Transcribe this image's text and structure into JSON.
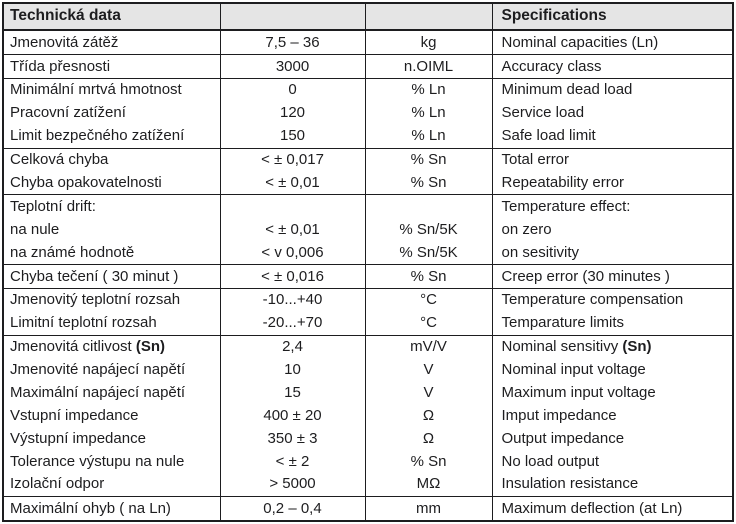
{
  "table": {
    "colors": {
      "header_bg": "#e5e5e5",
      "border": "#1d1d1f",
      "text": "#1d1d1f"
    },
    "header": {
      "czech_title": "Technická data",
      "value_title": "",
      "unit_title": "",
      "english_title": "Specifications"
    },
    "rows": [
      {
        "czech": "Jmenovitá zátěž",
        "value": "7,5 – 36",
        "unit": "kg",
        "english": "Nominal capacities (Ln)",
        "group_end": true
      },
      {
        "czech": "Třída přesnosti",
        "value": "3000",
        "unit": "n.OIML",
        "english": "Accuracy class",
        "group_end": true
      },
      {
        "czech": "Minimální mrtvá hmotnost",
        "value": "0",
        "unit": "% Ln",
        "english": "Minimum dead load"
      },
      {
        "czech": "Pracovní zatížení",
        "value": "120",
        "unit": "% Ln",
        "english": "Service load"
      },
      {
        "czech": "Limit bezpečného zatížení",
        "value": "150",
        "unit": "% Ln",
        "english": "Safe load limit",
        "group_end": true
      },
      {
        "czech": "Celková chyba",
        "value": "< ± 0,017",
        "unit": "% Sn",
        "english": "Total error"
      },
      {
        "czech": "Chyba opakovatelnosti",
        "value": "< ± 0,01",
        "unit": "% Sn",
        "english": "Repeatability error",
        "group_end": true
      },
      {
        "czech": "Teplotní drift:",
        "value": "",
        "unit": "",
        "english": "Temperature effect:"
      },
      {
        "czech": "na nule",
        "value": "< ± 0,01",
        "unit": "% Sn/5K",
        "english": "on zero"
      },
      {
        "czech": "na známé hodnotě",
        "value": "< v 0,006",
        "unit": "% Sn/5K",
        "english": "on sesitivity",
        "group_end": true
      },
      {
        "czech": "Chyba tečení ( 30 minut )",
        "value": "< ± 0,016",
        "unit": "% Sn",
        "english": "Creep error (30 minutes )",
        "group_end": true
      },
      {
        "czech": "Jmenovitý teplotní rozsah",
        "value": "-10...+40",
        "unit": "°C",
        "english": "Temperature compensation"
      },
      {
        "czech": "Limitní teplotní rozsah",
        "value": "-20...+70",
        "unit": "°C",
        "english": "Temparature limits",
        "group_end": true
      },
      {
        "czech": "Jmenovitá citlivost ",
        "czech_bold": "(Sn)",
        "value": "2,4",
        "unit": "mV/V",
        "english": "Nominal sensitivy ",
        "english_bold": "(Sn)"
      },
      {
        "czech": "Jmenovité napájecí napětí",
        "value": "10",
        "unit": "V",
        "english": "Nominal input voltage"
      },
      {
        "czech": "Maximální napájecí napětí",
        "value": "15",
        "unit": "V",
        "english": "Maximum input voltage"
      },
      {
        "czech": "Vstupní impedance",
        "value": "400 ± 20",
        "unit": "Ω",
        "english": "Imput impedance"
      },
      {
        "czech": "Výstupní impedance",
        "value": "350 ± 3",
        "unit": "Ω",
        "english": "Output impedance"
      },
      {
        "czech": "Tolerance výstupu na nule",
        "value": "< ± 2",
        "unit": "% Sn",
        "english": "No load output"
      },
      {
        "czech": "Izolační odpor",
        "value": "> 5000",
        "unit": "MΩ",
        "english": "Insulation resistance",
        "group_end": true
      },
      {
        "czech": "Maximální ohyb ( na Ln)",
        "value": "0,2 – 0,4",
        "unit": "mm",
        "english": "Maximum deflection (at Ln)"
      }
    ]
  }
}
